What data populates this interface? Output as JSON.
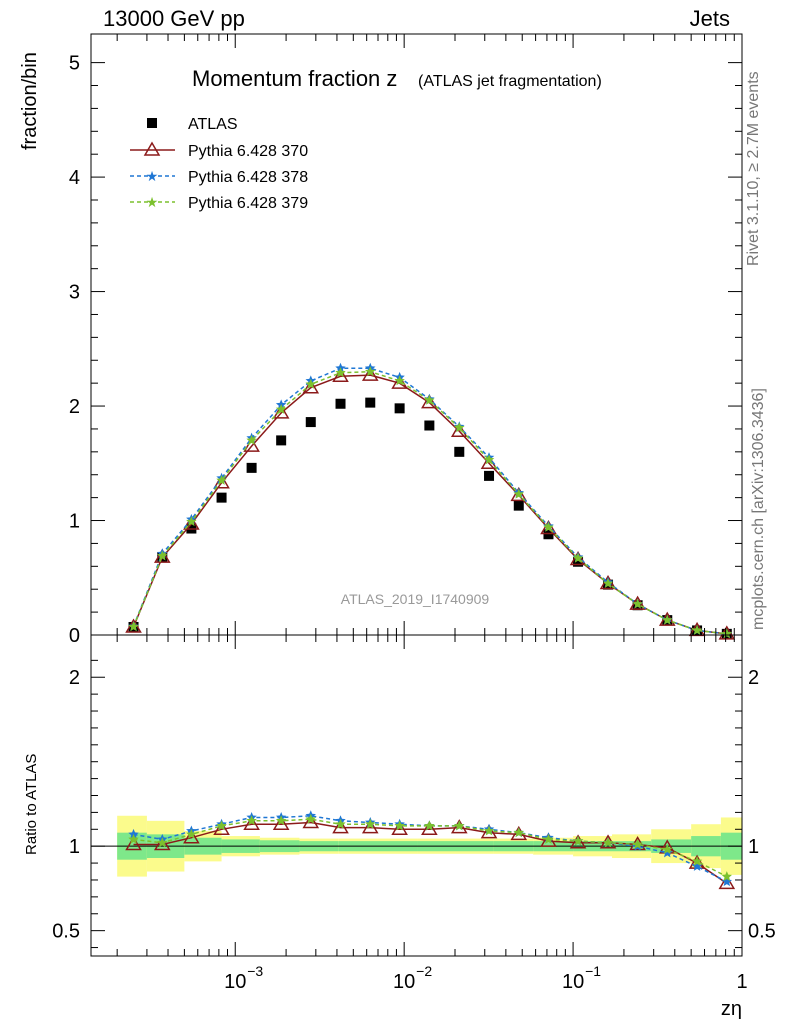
{
  "header": {
    "energy_label": "13000 GeV pp",
    "category_label": "Jets"
  },
  "side": {
    "rivet_label": "Rivet 3.1.10, ≥ 2.7M events",
    "source_label": "mcplots.cern.ch [arXiv:1306.3436]"
  },
  "chart_data": [
    {
      "type": "scatter",
      "panel": "main",
      "title": "Momentum fraction z",
      "subtitle": "(ATLAS jet fragmentation)",
      "ylabel": "fraction/bin",
      "analysis_label": "ATLAS_2019_I1740909",
      "xscale": "log",
      "xlim": [
        0.00014,
        1.0
      ],
      "ylim": [
        0,
        5.25
      ],
      "yticks": [
        0,
        1,
        2,
        3,
        4,
        5
      ],
      "legend_position": "top-left",
      "x": [
        0.00025,
        0.00037,
        0.00055,
        0.00083,
        0.00125,
        0.00187,
        0.0028,
        0.0042,
        0.0063,
        0.0094,
        0.0141,
        0.0212,
        0.0318,
        0.0477,
        0.0715,
        0.107,
        0.161,
        0.241,
        0.361,
        0.542,
        0.813
      ],
      "series": [
        {
          "name": "ATLAS",
          "marker": "square",
          "color": "#000000",
          "values": [
            0.07,
            0.68,
            0.93,
            1.2,
            1.46,
            1.7,
            1.86,
            2.02,
            2.03,
            1.98,
            1.83,
            1.6,
            1.39,
            1.13,
            0.88,
            0.64,
            0.44,
            0.26,
            0.13,
            0.04,
            0.01
          ]
        },
        {
          "name": "Pythia 6.428 370",
          "marker": "open-triangle",
          "line": "solid",
          "color": "#8b1a1a",
          "values": [
            0.07,
            0.68,
            0.97,
            1.33,
            1.65,
            1.94,
            2.16,
            2.26,
            2.27,
            2.2,
            2.03,
            1.78,
            1.5,
            1.22,
            0.93,
            0.66,
            0.45,
            0.27,
            0.13,
            0.04,
            0.01
          ]
        },
        {
          "name": "Pythia 6.428 378",
          "marker": "star",
          "line": "dashed",
          "color": "#1f77d4",
          "values": [
            0.075,
            0.71,
            1.01,
            1.37,
            1.72,
            2.01,
            2.22,
            2.33,
            2.33,
            2.25,
            2.06,
            1.82,
            1.55,
            1.24,
            0.95,
            0.68,
            0.46,
            0.27,
            0.13,
            0.04,
            0.01
          ]
        },
        {
          "name": "Pythia 6.428 379",
          "marker": "star",
          "line": "dashed",
          "color": "#7cc12e",
          "values": [
            0.072,
            0.69,
            0.99,
            1.35,
            1.7,
            1.97,
            2.19,
            2.29,
            2.3,
            2.22,
            2.05,
            1.81,
            1.53,
            1.23,
            0.94,
            0.67,
            0.45,
            0.27,
            0.13,
            0.04,
            0.01
          ]
        }
      ]
    },
    {
      "type": "line",
      "panel": "ratio",
      "ylabel": "Ratio to ATLAS",
      "xlabel": "zη",
      "xscale": "log",
      "xlim": [
        0.00014,
        1.0
      ],
      "ylim": [
        0.35,
        2.25
      ],
      "yticks": [
        0.5,
        1,
        2
      ],
      "ytick_labels": [
        "0.5",
        "1",
        "2"
      ],
      "xticks": [
        0.001,
        0.01,
        0.1,
        1
      ],
      "xtick_labels": [
        "10",
        "10",
        "10",
        "1"
      ],
      "xtick_exponents": [
        "−3",
        "−2",
        "−1",
        ""
      ],
      "reference": 1,
      "uncertainty_bands": {
        "edges": [
          0.0002,
          0.0003,
          0.0005,
          0.00083,
          0.0014,
          0.0024,
          0.0041,
          0.007,
          0.012,
          0.02,
          0.034,
          0.058,
          0.1,
          0.17,
          0.29,
          0.5,
          0.75,
          1.0
        ],
        "inner": [
          0.08,
          0.07,
          0.05,
          0.04,
          0.035,
          0.03,
          0.03,
          0.03,
          0.03,
          0.03,
          0.03,
          0.03,
          0.03,
          0.03,
          0.04,
          0.06,
          0.08
        ],
        "outer": [
          0.18,
          0.15,
          0.09,
          0.06,
          0.05,
          0.045,
          0.045,
          0.045,
          0.045,
          0.045,
          0.045,
          0.05,
          0.06,
          0.07,
          0.1,
          0.13,
          0.17
        ],
        "inner_color": "#7ee88a",
        "outer_color": "#fbfb8c"
      },
      "x": [
        0.00025,
        0.00037,
        0.00055,
        0.00083,
        0.00125,
        0.00187,
        0.0028,
        0.0042,
        0.0063,
        0.0094,
        0.0141,
        0.0212,
        0.0318,
        0.0477,
        0.0715,
        0.107,
        0.161,
        0.241,
        0.361,
        0.542,
        0.813
      ],
      "series": [
        {
          "name": "Pythia 6.428 370",
          "marker": "open-triangle",
          "line": "solid",
          "color": "#8b1a1a",
          "values": [
            1.01,
            1.01,
            1.05,
            1.1,
            1.13,
            1.13,
            1.14,
            1.11,
            1.11,
            1.1,
            1.1,
            1.11,
            1.08,
            1.07,
            1.03,
            1.02,
            1.02,
            1.01,
            0.99,
            0.9,
            0.78
          ]
        },
        {
          "name": "Pythia 6.428 378",
          "marker": "star",
          "line": "dashed",
          "color": "#1f77d4",
          "values": [
            1.07,
            1.04,
            1.09,
            1.13,
            1.17,
            1.17,
            1.18,
            1.15,
            1.14,
            1.13,
            1.12,
            1.12,
            1.1,
            1.08,
            1.05,
            1.03,
            1.02,
            1.0,
            0.96,
            0.88,
            0.79
          ]
        },
        {
          "name": "Pythia 6.428 379",
          "marker": "star",
          "line": "dashed",
          "color": "#7cc12e",
          "values": [
            1.04,
            1.02,
            1.07,
            1.12,
            1.15,
            1.15,
            1.16,
            1.13,
            1.13,
            1.12,
            1.12,
            1.12,
            1.09,
            1.08,
            1.04,
            1.03,
            1.02,
            1.01,
            0.98,
            0.91,
            0.82
          ]
        }
      ]
    }
  ]
}
